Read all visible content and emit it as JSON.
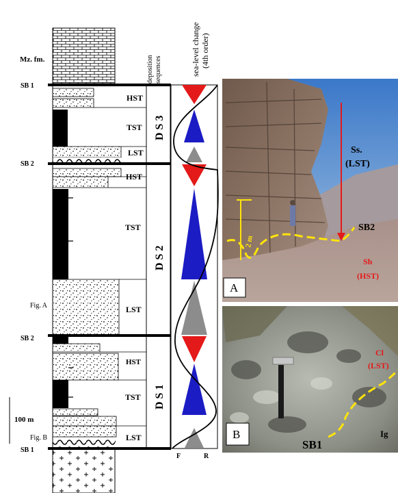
{
  "column": {
    "formation_label": "Mz. fm.",
    "boundaries": [
      {
        "label": "SB 1",
        "pos": "top"
      },
      {
        "label": "SB 2",
        "pos": "upper"
      },
      {
        "label": "SB 2",
        "pos": "lower"
      },
      {
        "label": "SB 1",
        "pos": "base"
      }
    ],
    "figure_refs": [
      "Fig. A",
      "Fig. B"
    ],
    "scale_label": "100 m"
  },
  "systems_tracts": [
    "HST",
    "TST",
    "LST",
    "HST",
    "TST",
    "LST",
    "HST",
    "TST",
    "LST"
  ],
  "sequences": {
    "header_line1": "deposition",
    "header_line2": "sequences",
    "items": [
      "D S 3",
      "D S 2",
      "D S 1"
    ]
  },
  "sea_level": {
    "header_line1": "sea-level change",
    "header_line2": "(4th order)",
    "axis_left": "F",
    "axis_right": "R",
    "colors": {
      "hst": "#e41919",
      "tst": "#1c1cc4",
      "lst": "#8c8c8c"
    }
  },
  "photo_a": {
    "panel_letter": "A",
    "label_ss_line1": "Ss.",
    "label_ss_line2": "(LST)",
    "label_sb": "SB2",
    "label_scale": "2 m",
    "label_sh_line1": "Sh",
    "label_sh_line2": "(HST)"
  },
  "photo_b": {
    "panel_letter": "B",
    "label_cl_line1": "Cl",
    "label_cl_line2": "(LST)",
    "label_sb": "SB1",
    "label_ig": "Ig"
  }
}
